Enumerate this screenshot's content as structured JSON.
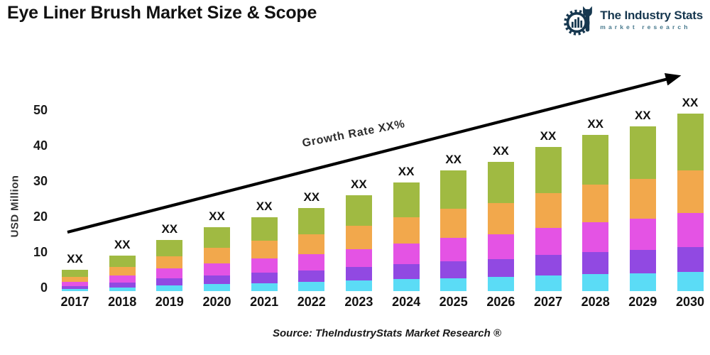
{
  "header": {
    "title": "Eye Liner Brush Market Size & Scope",
    "logo": {
      "name": "The Industry Stats",
      "tagline": "market research",
      "icon": "gear-bars-wrench-icon",
      "brand_color": "#16374f"
    }
  },
  "chart": {
    "y_axis_label": "USD Million",
    "y_ticks": [
      0,
      10,
      20,
      30,
      40,
      50
    ],
    "bar_value_label": "XX",
    "growth_label": "Growth Rate XX%",
    "arrow_color": "#000000"
  },
  "chart_data": {
    "type": "bar",
    "stacked": true,
    "title": "Eye Liner Brush Market Size & Scope",
    "xlabel": "",
    "ylabel": "USD Million",
    "ylim": [
      0,
      50
    ],
    "grid": false,
    "legend": "none",
    "categories": [
      "2017",
      "2018",
      "2019",
      "2020",
      "2021",
      "2022",
      "2023",
      "2024",
      "2025",
      "2026",
      "2027",
      "2028",
      "2029",
      "2030"
    ],
    "series": [
      {
        "name": "cyan-bottom-segment",
        "color": "#5bdcf6",
        "values": [
          0.7,
          1.1,
          1.6,
          2.0,
          2.3,
          2.6,
          3.0,
          3.4,
          3.7,
          4.0,
          4.5,
          4.8,
          5.1,
          5.5
        ]
      },
      {
        "name": "purple-segment",
        "color": "#9149e2",
        "values": [
          0.8,
          1.4,
          2.0,
          2.5,
          2.9,
          3.3,
          3.8,
          4.3,
          4.8,
          5.1,
          5.7,
          6.2,
          6.5,
          7.0
        ]
      },
      {
        "name": "magenta-segment",
        "color": "#e453e4",
        "values": [
          1.1,
          1.9,
          2.8,
          3.4,
          4.0,
          4.5,
          5.1,
          5.8,
          6.5,
          6.9,
          7.7,
          8.4,
          8.8,
          9.5
        ]
      },
      {
        "name": "orange-segment",
        "color": "#f2a84c",
        "values": [
          1.4,
          2.4,
          3.5,
          4.3,
          5.0,
          5.6,
          6.5,
          7.3,
          8.2,
          8.8,
          9.7,
          10.6,
          11.2,
          12.0
        ]
      },
      {
        "name": "green-top-segment",
        "color": "#a0ba42",
        "values": [
          2.0,
          3.2,
          4.6,
          5.8,
          6.7,
          7.5,
          8.6,
          9.8,
          10.9,
          11.7,
          13.0,
          14.1,
          14.9,
          16.0
        ]
      }
    ],
    "totals": [
      6.0,
      10.0,
      14.5,
      18.0,
      21.0,
      23.5,
      27.0,
      30.5,
      34.0,
      36.5,
      40.5,
      44.0,
      46.5,
      50.0
    ],
    "bar_top_label_each": "XX",
    "annotation": "Growth Rate XX%"
  },
  "footer": {
    "source": "Source: TheIndustryStats Market Research ®"
  }
}
